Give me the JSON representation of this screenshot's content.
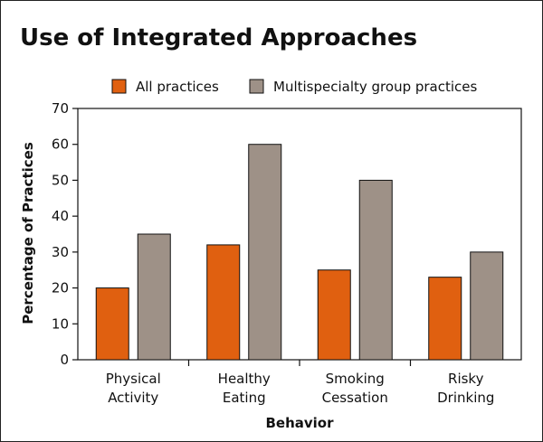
{
  "chart_data": {
    "type": "bar",
    "title": "Use of Integrated Approaches",
    "xlabel": "Behavior",
    "ylabel": "Percentage of Practices",
    "ylim": [
      0,
      70
    ],
    "yticks": [
      0,
      10,
      20,
      30,
      40,
      50,
      60,
      70
    ],
    "categories": [
      [
        "Physical",
        "Activity"
      ],
      [
        "Healthy",
        "Eating"
      ],
      [
        "Smoking",
        "Cessation"
      ],
      [
        "Risky",
        "Drinking"
      ]
    ],
    "series": [
      {
        "name": "All practices",
        "color": "#e06010",
        "values": [
          20,
          32,
          25,
          23
        ]
      },
      {
        "name": "Multispecialty group practices",
        "color": "#9e9187",
        "values": [
          35,
          60,
          50,
          30
        ]
      }
    ],
    "legend": "top",
    "grid": false
  }
}
